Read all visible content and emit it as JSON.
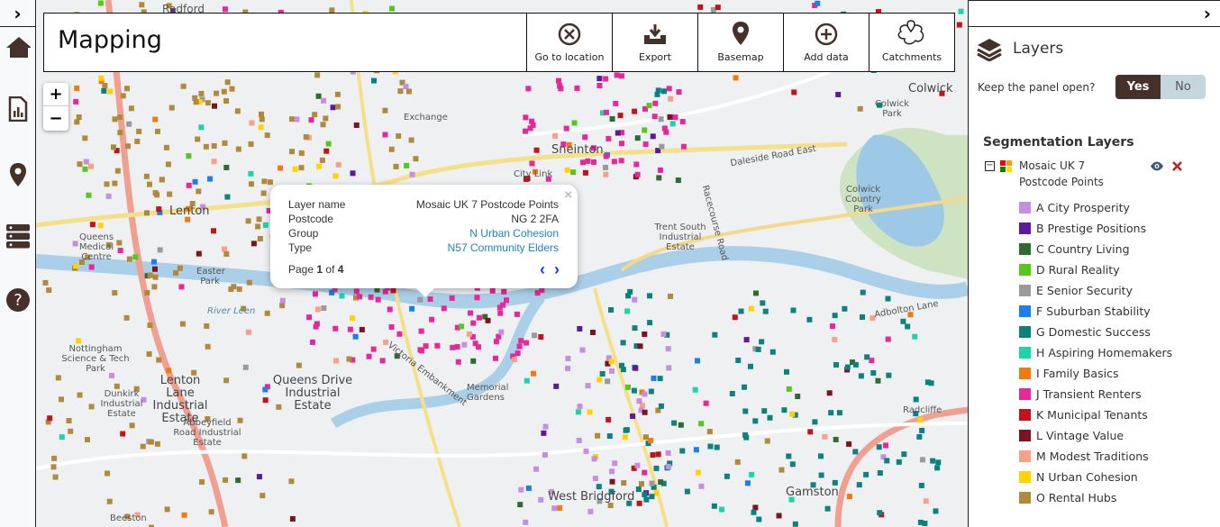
{
  "app": {
    "title": "Mapping"
  },
  "toolbar": {
    "buttons": [
      {
        "label": "Go to location",
        "icon": "circle-x-icon"
      },
      {
        "label": "Export",
        "icon": "export-tray-icon"
      },
      {
        "label": "Basemap",
        "icon": "map-pin-icon"
      },
      {
        "label": "Add data",
        "icon": "circle-plus-icon"
      },
      {
        "label": "Catchments",
        "icon": "catchment-pin-icon"
      }
    ]
  },
  "zoom": {
    "in": "+",
    "out": "−"
  },
  "sidebar": {
    "toggle": "›",
    "items": [
      "home-icon",
      "report-icon",
      "location-icon",
      "database-icon",
      "help-icon"
    ]
  },
  "popup": {
    "rows": [
      {
        "label": "Layer name",
        "value": "Mosaic UK 7 Postcode Points"
      },
      {
        "label": "Postcode",
        "value": "NG 2 2FA"
      },
      {
        "label": "Group",
        "value": "N Urban Cohesion"
      },
      {
        "label": "Type",
        "value": "N57 Community Elders"
      }
    ],
    "page_prefix": "Page",
    "page": "1",
    "page_of": "of",
    "page_total": "4",
    "close": "×",
    "prev": "‹",
    "next": "›"
  },
  "panel": {
    "toggle": "›",
    "title": "Layers",
    "keep_open_label": "Keep the panel open?",
    "yes": "Yes",
    "no": "No",
    "section": "Segmentation Layers",
    "layer_name_1": "Mosaic UK 7",
    "layer_name_2": "Postcode Points",
    "collapse": "−",
    "legend": [
      {
        "label": "A City Prosperity",
        "color": "#c58ee0"
      },
      {
        "label": "B Prestige Positions",
        "color": "#5a1a9a"
      },
      {
        "label": "C Country Living",
        "color": "#2f6b2f"
      },
      {
        "label": "D Rural Reality",
        "color": "#55c81e"
      },
      {
        "label": "E Senior Security",
        "color": "#9a9a9a"
      },
      {
        "label": "F Suburban Stability",
        "color": "#1a7fe8"
      },
      {
        "label": "G Domestic Success",
        "color": "#0d8080"
      },
      {
        "label": "H Aspiring Homemakers",
        "color": "#1dd4a8"
      },
      {
        "label": "I Family Basics",
        "color": "#ef7a10"
      },
      {
        "label": "J Transient Renters",
        "color": "#e8279a"
      },
      {
        "label": "K Municipal Tenants",
        "color": "#c0141a"
      },
      {
        "label": "L Vintage Value",
        "color": "#7a1420"
      },
      {
        "label": "M Modest Traditions",
        "color": "#f9a08a"
      },
      {
        "label": "N Urban Cohesion",
        "color": "#ffd200"
      },
      {
        "label": "O Rental Hubs",
        "color": "#b08a3a"
      }
    ]
  },
  "map_labels": [
    "Radford",
    "Lenton",
    "Sneinton",
    "Colwick",
    "Colwick Park",
    "Colwick Country Park",
    "Trent South Industrial Estate",
    "Queens Medical Centre",
    "Easter Park",
    "River Leen",
    "Nottingham Science & Tech Park",
    "Lenton Lane Industrial Estate",
    "Dunkirk Industrial Estate",
    "Queens Drive Industrial Estate",
    "Abbeyfield Road Industrial Estate",
    "Memorial Gardens",
    "West Bridgford",
    "Gamston",
    "Radcliffe",
    "Victoria Embankment",
    "Daleside Road East",
    "Racecourse Road",
    "Adbolton Lane",
    "Exchange",
    "City Link",
    "Beeston"
  ]
}
